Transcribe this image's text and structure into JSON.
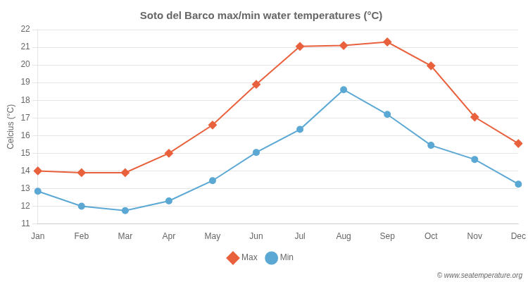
{
  "chart_data": {
    "type": "line",
    "title": "Soto del Barco max/min water temperatures (°C)",
    "ylabel": "Celcius (°C)",
    "categories": [
      "Jan",
      "Feb",
      "Mar",
      "Apr",
      "May",
      "Jun",
      "Jul",
      "Aug",
      "Sep",
      "Oct",
      "Nov",
      "Dec"
    ],
    "series": [
      {
        "name": "Max",
        "color": "#e8613c",
        "marker": "diamond",
        "values": [
          14.0,
          13.9,
          13.9,
          15.0,
          16.6,
          18.9,
          21.05,
          21.1,
          21.3,
          19.95,
          17.05,
          15.55
        ]
      },
      {
        "name": "Min",
        "color": "#5ba8d4",
        "marker": "circle",
        "values": [
          12.85,
          12.0,
          11.75,
          12.3,
          13.45,
          15.05,
          16.35,
          18.6,
          17.2,
          15.45,
          14.65,
          13.25
        ]
      }
    ],
    "ylim": [
      11,
      22
    ],
    "yticks": [
      11,
      12,
      13,
      14,
      15,
      16,
      17,
      18,
      19,
      20,
      21,
      22
    ],
    "grid": true,
    "legend": "bottom",
    "annotations": [
      "© www.seatemperature.org"
    ]
  }
}
